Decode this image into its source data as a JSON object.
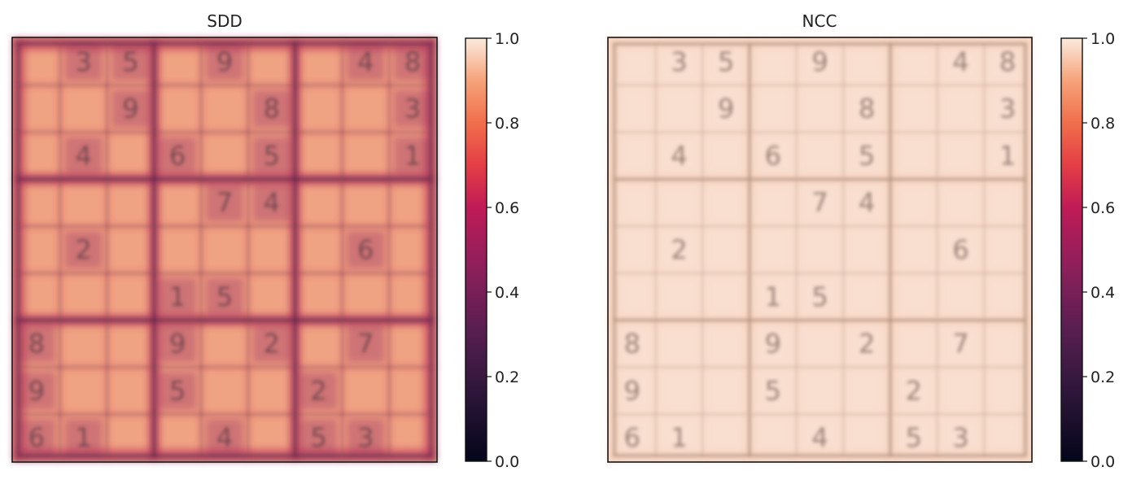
{
  "chart_data": [
    {
      "type": "heatmap",
      "title": "SDD",
      "grid_size": 9,
      "colormap": "rocket",
      "colorbar": {
        "min": 0.0,
        "max": 1.0,
        "ticks": [
          "0.0",
          "0.2",
          "0.4",
          "0.6",
          "0.8",
          "1.0"
        ]
      },
      "mean_value": 0.78,
      "grid_line_value": 0.6,
      "box_line_value": 0.35,
      "digit_value": 0.3
    },
    {
      "type": "heatmap",
      "title": "NCC",
      "grid_size": 9,
      "colormap": "rocket",
      "colorbar": {
        "min": 0.0,
        "max": 1.0,
        "ticks": [
          "0.0",
          "0.2",
          "0.4",
          "0.6",
          "0.8",
          "1.0"
        ]
      },
      "mean_value": 0.97,
      "grid_line_value": 0.9,
      "box_line_value": 0.8,
      "digit_value": 0.85
    }
  ],
  "puzzle": [
    [
      "",
      "3",
      "5",
      "",
      "9",
      "",
      "",
      "4",
      "8"
    ],
    [
      "",
      "",
      "9",
      "",
      "",
      "8",
      "",
      "",
      "3"
    ],
    [
      "",
      "4",
      "",
      "6",
      "",
      "5",
      "",
      "",
      "1"
    ],
    [
      "",
      "",
      "",
      "",
      "7",
      "4",
      "",
      "",
      ""
    ],
    [
      "",
      "2",
      "",
      "",
      "",
      "",
      "",
      "6",
      ""
    ],
    [
      "",
      "",
      "",
      "1",
      "5",
      "",
      "",
      "",
      ""
    ],
    [
      "8",
      "",
      "",
      "9",
      "",
      "2",
      "",
      "7",
      ""
    ],
    [
      "9",
      "",
      "",
      "5",
      "",
      "",
      "2",
      "",
      ""
    ],
    [
      "6",
      "1",
      "",
      "",
      "4",
      "",
      "5",
      "3",
      ""
    ]
  ],
  "colors": {
    "sdd_background": "#f0a383",
    "sdd_grid": "#c33a5b",
    "sdd_box": "#8a2f5a",
    "ncc_background": "#f9dfd0",
    "ncc_band": "#f6cdb5",
    "ncc_grid": "#c7ab9a",
    "ncc_box": "#a88d7e"
  }
}
